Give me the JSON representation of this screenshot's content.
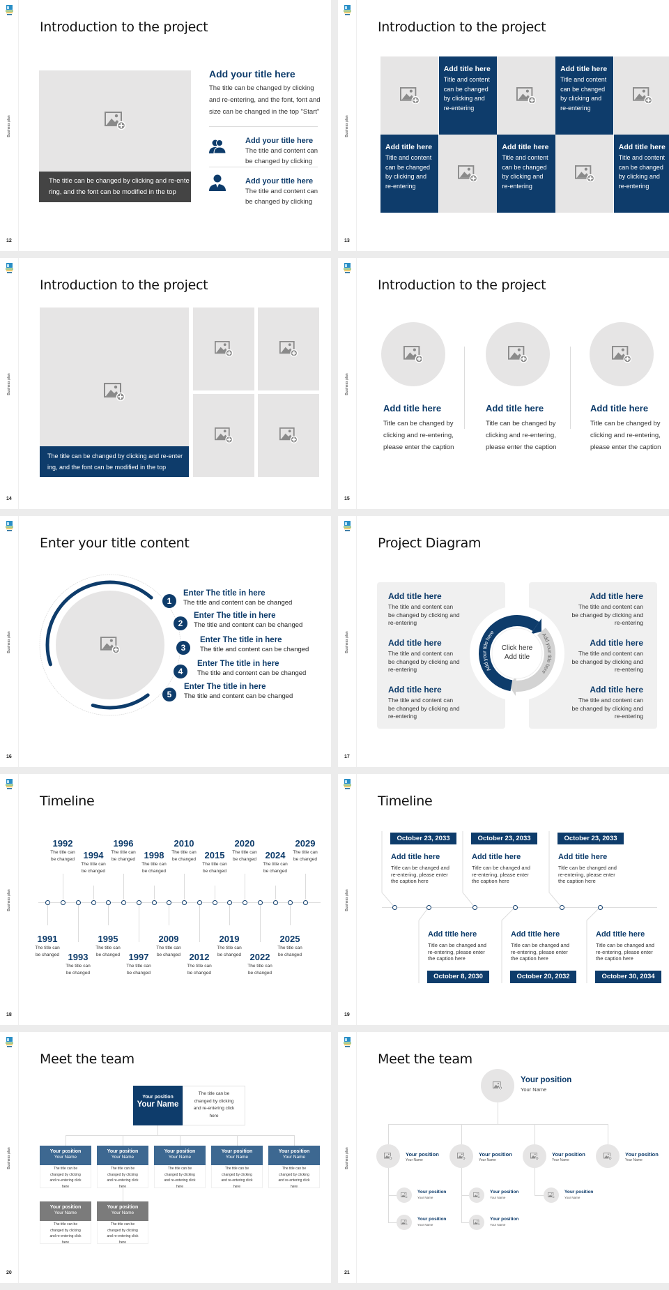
{
  "common": {
    "footer_label": "Business plan",
    "logo_icon": "logo-icon",
    "placeholder_icon": "image-add-icon"
  },
  "colors": {
    "navy": "#0e3c6b",
    "placeholder": "#e6e5e5",
    "dark_caption": "#444444",
    "mid_blue": "#3d6891",
    "gray_header": "#7b7b7b",
    "arrow_gray": "#d3d3d3"
  },
  "slides": [
    {
      "number": "12",
      "title": "Introduction to the project",
      "image_caption": "The title can be changed by clicking and re-ente\nring, and the font can be modified in the top",
      "heading": "Add your title here",
      "body": "The title can be changed by clicking\nand re-entering, and the font, font and\nsize can be changed in the top \"Start\"",
      "items": [
        {
          "icon": "users-icon",
          "title": "Add your title here",
          "body": "The title and content can\nbe changed by clicking"
        },
        {
          "icon": "user-icon",
          "title": "Add your title here",
          "body": "The title and content can\nbe changed by clicking"
        }
      ]
    },
    {
      "number": "13",
      "title": "Introduction to the project",
      "tiles": [
        {
          "title": "Add title here",
          "body": "Title and content\ncan be changed\nby clicking and\nre-entering"
        },
        {
          "title": "Add title here",
          "body": "Title and content\ncan be changed\nby clicking and\nre-entering"
        },
        {
          "title": "Add title here",
          "body": "Title and content\ncan be changed\nby clicking and\nre-entering"
        },
        {
          "title": "Add title here",
          "body": "Title and content\ncan be changed\nby clicking and\nre-entering"
        },
        {
          "title": "Add title here",
          "body": "Title and content\ncan be changed\nby clicking and\nre-entering"
        }
      ]
    },
    {
      "number": "14",
      "title": "Introduction to the project",
      "image_caption": "The title can be changed by clicking and re-enter\ning, and the font can be modified in the top"
    },
    {
      "number": "15",
      "title": "Introduction to the project",
      "cards": [
        {
          "title": "Add title here",
          "body": "Title can be changed by\nclicking and re-entering,\nplease enter the caption"
        },
        {
          "title": "Add title here",
          "body": "Title can be changed by\nclicking and re-entering,\nplease enter the caption"
        },
        {
          "title": "Add title here",
          "body": "Title can be changed by\nclicking and re-entering,\nplease enter the caption"
        }
      ]
    },
    {
      "number": "16",
      "title": "Enter your title content",
      "items": [
        {
          "n": "1",
          "title": "Enter The title in here",
          "body": "The title and content can be changed"
        },
        {
          "n": "2",
          "title": "Enter The title in here",
          "body": "The title and content can be changed"
        },
        {
          "n": "3",
          "title": "Enter The title in here",
          "body": "The title and content can be changed"
        },
        {
          "n": "4",
          "title": "Enter The title in here",
          "body": "The title and content can be changed"
        },
        {
          "n": "5",
          "title": "Enter The title in here",
          "body": "The title and content can be changed"
        }
      ]
    },
    {
      "number": "17",
      "title": "Project Diagram",
      "center_lines": [
        "Click here",
        "Add title"
      ],
      "arrow_labels": [
        "Add your title here",
        "Add your title here"
      ],
      "left_items": [
        {
          "title": "Add title here",
          "body": "The title and content can\nbe changed by clicking and\nre-entering"
        },
        {
          "title": "Add title here",
          "body": "The title and content can\nbe changed by clicking and\nre-entering"
        },
        {
          "title": "Add title here",
          "body": "The title and content can\nbe changed by clicking and\nre-entering"
        }
      ],
      "right_items": [
        {
          "title": "Add title here",
          "body": "The title and content can\nbe changed by clicking and\nre-entering"
        },
        {
          "title": "Add title here",
          "body": "The title and content can\nbe changed by clicking and\nre-entering"
        },
        {
          "title": "Add title here",
          "body": "The title and content can\nbe changed by clicking and\nre-entering"
        }
      ]
    },
    {
      "number": "18",
      "title": "Timeline",
      "events": [
        {
          "year": "1991",
          "side": "bottom",
          "body": "The title can\nbe changed"
        },
        {
          "year": "1992",
          "side": "top",
          "body": "The title can\nbe changed"
        },
        {
          "year": "1993",
          "side": "bottom",
          "body": "The title can\nbe changed"
        },
        {
          "year": "1994",
          "side": "top",
          "body": "The title can\nbe changed"
        },
        {
          "year": "1995",
          "side": "bottom",
          "body": "The title can\nbe changed"
        },
        {
          "year": "1996",
          "side": "top",
          "body": "The title can\nbe changed"
        },
        {
          "year": "1997",
          "side": "bottom",
          "body": "The title can\nbe changed"
        },
        {
          "year": "1998",
          "side": "top",
          "body": "The title can\nbe changed"
        },
        {
          "year": "2009",
          "side": "bottom",
          "body": "The title can\nbe changed"
        },
        {
          "year": "2010",
          "side": "top",
          "body": "The title can\nbe changed"
        },
        {
          "year": "2012",
          "side": "bottom",
          "body": "The title can\nbe changed"
        },
        {
          "year": "2015",
          "side": "top",
          "body": "The title can\nbe changed"
        },
        {
          "year": "2019",
          "side": "bottom",
          "body": "The title can\nbe changed"
        },
        {
          "year": "2020",
          "side": "top",
          "body": "The title can\nbe changed"
        },
        {
          "year": "2022",
          "side": "bottom",
          "body": "The title can\nbe changed"
        },
        {
          "year": "2024",
          "side": "top",
          "body": "The title can\nbe changed"
        },
        {
          "year": "2025",
          "side": "bottom",
          "body": "The title can\nbe changed"
        },
        {
          "year": "2029",
          "side": "top",
          "body": "The title can\nbe changed"
        }
      ]
    },
    {
      "number": "19",
      "title": "Timeline",
      "events": [
        {
          "side": "top",
          "date": "October 23, 2033",
          "title": "Add title here",
          "body": "Title can be changed and\nre-entering, please enter\nthe caption here"
        },
        {
          "side": "bottom",
          "date": "October 8, 2030",
          "title": "Add title here",
          "body": "Title can be changed and\nre-entering, please enter\nthe caption here"
        },
        {
          "side": "top",
          "date": "October 23, 2033",
          "title": "Add title here",
          "body": "Title can be changed and\nre-entering, please enter\nthe caption here"
        },
        {
          "side": "bottom",
          "date": "October 20, 2032",
          "title": "Add title here",
          "body": "Title can be changed and\nre-entering, please enter\nthe caption here"
        },
        {
          "side": "top",
          "date": "October 23, 2033",
          "title": "Add title here",
          "body": "Title can be changed and\nre-entering, please enter\nthe caption here"
        },
        {
          "side": "bottom",
          "date": "October 30, 2034",
          "title": "Add title here",
          "body": "Title can be changed and\nre-entering, please enter\nthe caption here"
        }
      ]
    },
    {
      "number": "20",
      "title": "Meet the team",
      "lead": {
        "position": "Your position",
        "name": "Your Name",
        "desc": "The title can be\nchanged by clicking\nand re-entering click\nhere"
      },
      "members": [
        {
          "position": "Your position",
          "name": "Your Name",
          "desc": "The title can be\nchanged by clicking\nand re-entering click\nhere"
        },
        {
          "position": "Your position",
          "name": "Your Name",
          "desc": "The title can be\nchanged by clicking\nand re-entering click\nhere"
        },
        {
          "position": "Your position",
          "name": "Your Name",
          "desc": "The title can be\nchanged by clicking\nand re-entering click\nhere"
        },
        {
          "position": "Your position",
          "name": "Your Name",
          "desc": "The title can be\nchanged by clicking\nand re-entering click\nhere"
        },
        {
          "position": "Your position",
          "name": "Your Name",
          "desc": "The title can be\nchanged by clicking\nand re-entering click\nhere"
        }
      ],
      "sub_members": [
        {
          "position": "Your position",
          "name": "Your Name",
          "desc": "The title can be\nchanged by clicking\nand re-entering click\nhere"
        },
        {
          "position": "Your position",
          "name": "Your Name",
          "desc": "The title can be\nchanged by clicking\nand re-entering click\nhere"
        }
      ]
    },
    {
      "number": "21",
      "title": "Meet the team",
      "lead": {
        "position": "Your position",
        "name": "Your Name"
      },
      "level2": [
        {
          "position": "Your position",
          "name": "Your Name"
        },
        {
          "position": "Your position",
          "name": "Your Name"
        },
        {
          "position": "Your position",
          "name": "Your Name"
        },
        {
          "position": "Your position",
          "name": "Your Name"
        }
      ],
      "level3": [
        {
          "position": "Your position",
          "name": "Your Name"
        },
        {
          "position": "Your position",
          "name": "Your Name"
        },
        {
          "position": "Your position",
          "name": "Your Name"
        },
        {
          "position": "Your position",
          "name": "Your Name"
        },
        {
          "position": "Your position",
          "name": "Your Name"
        }
      ]
    }
  ]
}
